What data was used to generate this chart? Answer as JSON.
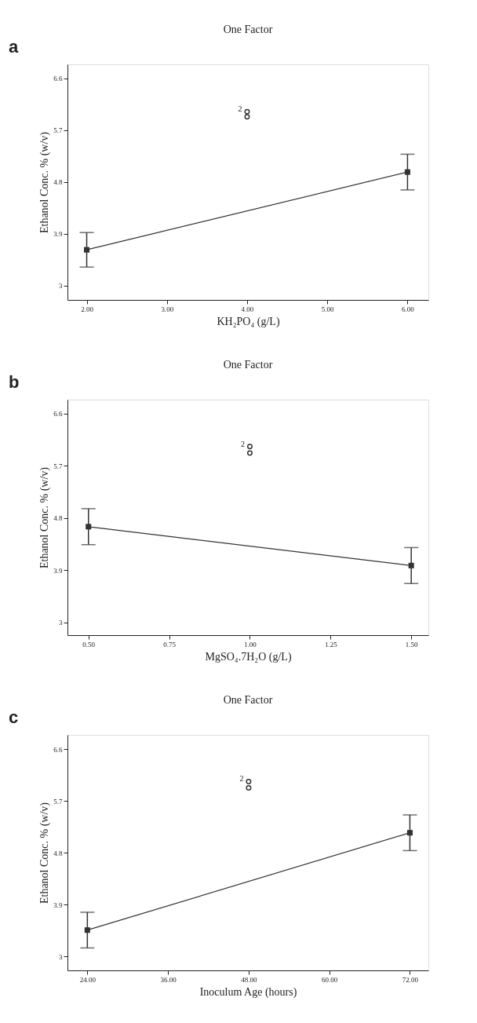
{
  "chart_data": [
    {
      "type": "line",
      "title": "One Factor",
      "xlabel": "KH₂PO₄ (g/L)",
      "ylabel": "Ethanol Conc. % (w/v)",
      "annotations": [
        "a",
        {
          "text": "2",
          "x": 4,
          "y": 6.02
        }
      ],
      "x": [
        2,
        6
      ],
      "xlim": [
        1.76,
        6.26
      ],
      "ylim": [
        2.75,
        6.84
      ],
      "xticks": [
        {
          "value": 2,
          "label": "2.00"
        },
        {
          "value": 3,
          "label": "3.00"
        },
        {
          "value": 4,
          "label": "4.00"
        },
        {
          "value": 5,
          "label": "5.00"
        },
        {
          "value": 6,
          "label": "6.00"
        }
      ],
      "yticks": [
        3,
        3.9,
        4.8,
        5.7,
        6.6
      ],
      "grid": false,
      "marker": "square",
      "line_style": "solid",
      "series": [
        {
          "color": "#333333",
          "values": [
            3.62,
            4.97
          ],
          "errors": [
            0.3,
            0.31
          ]
        },
        {
          "type": "scatter",
          "marker": "circle",
          "color": "#333333",
          "x": [
            4,
            4
          ],
          "values": [
            6.02,
            5.93
          ]
        }
      ]
    },
    {
      "type": "line",
      "title": "One Factor",
      "xlabel": "MgSO₄.7H₂O (g/L)",
      "ylabel": "Ethanol Conc. % (w/v)",
      "annotations": [
        "b",
        {
          "text": "2",
          "x": 1.0,
          "y": 6.03
        }
      ],
      "x": [
        0.5,
        1.5
      ],
      "xlim": [
        0.435,
        1.553
      ],
      "ylim": [
        2.78,
        6.84
      ],
      "xticks": [
        {
          "value": 0.5,
          "label": "0.50"
        },
        {
          "value": 0.75,
          "label": "0.75"
        },
        {
          "value": 1.0,
          "label": "1.00"
        },
        {
          "value": 1.25,
          "label": "1.25"
        },
        {
          "value": 1.5,
          "label": "1.50"
        }
      ],
      "yticks": [
        3,
        3.9,
        4.8,
        5.7,
        6.6
      ],
      "grid": false,
      "marker": "square",
      "line_style": "solid",
      "series": [
        {
          "color": "#333333",
          "values": [
            4.65,
            3.98
          ],
          "errors": [
            0.31,
            0.31
          ]
        },
        {
          "type": "scatter",
          "marker": "circle",
          "color": "#333333",
          "x": [
            1.0,
            1.0
          ],
          "values": [
            6.03,
            5.92
          ]
        }
      ]
    },
    {
      "type": "line",
      "title": "One Factor",
      "xlabel": "Inoculum Age (hours)",
      "ylabel": "Ethanol Conc. % (w/v)",
      "annotations": [
        "c",
        {
          "text": "2",
          "x": 48,
          "y": 6.04
        }
      ],
      "x": [
        24,
        72
      ],
      "xlim": [
        21.04,
        74.75
      ],
      "ylim": [
        2.76,
        6.85
      ],
      "xticks": [
        {
          "value": 24,
          "label": "24.00"
        },
        {
          "value": 36,
          "label": "36.00"
        },
        {
          "value": 48,
          "label": "48.00"
        },
        {
          "value": 60,
          "label": "60.00"
        },
        {
          "value": 72,
          "label": "72.00"
        }
      ],
      "yticks": [
        3,
        3.9,
        4.8,
        5.7,
        6.6
      ],
      "grid": false,
      "marker": "square",
      "line_style": "solid",
      "series": [
        {
          "color": "#333333",
          "values": [
            3.46,
            5.15
          ],
          "errors": [
            0.31,
            0.31
          ]
        },
        {
          "type": "scatter",
          "marker": "circle",
          "color": "#333333",
          "x": [
            48,
            48
          ],
          "values": [
            6.04,
            5.93
          ]
        }
      ]
    }
  ]
}
